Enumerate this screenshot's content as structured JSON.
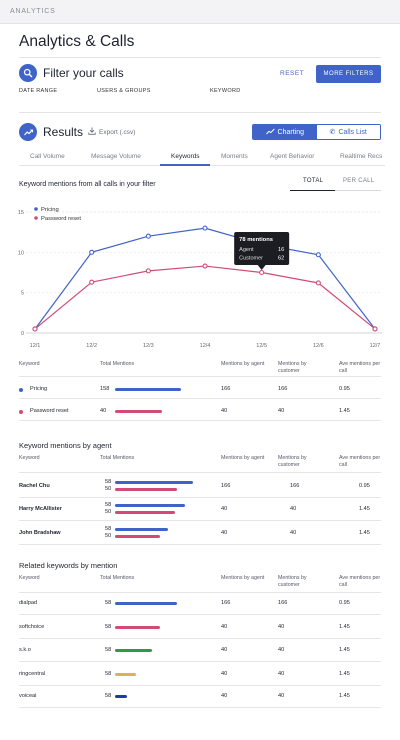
{
  "app": {
    "top_label": "ANALYTICS",
    "title": "Analytics & Calls"
  },
  "filter": {
    "title": "Filter your calls",
    "reset_label": "RESET",
    "more_label": "MORE FILTERS",
    "fields": [
      "DATE RANGE",
      "USERS & GROUPS",
      "KEYWORD"
    ]
  },
  "results": {
    "title": "Results",
    "export_label": "Export (.csv)",
    "view_toggle": [
      {
        "label": "Charting",
        "active": true
      },
      {
        "label": "Calls List",
        "active": false
      }
    ],
    "tabs": [
      "Call Volume",
      "Message Volume",
      "Keywords",
      "Moments",
      "Agent Behavior",
      "Realtime Recs"
    ],
    "active_tab": "Keywords"
  },
  "chart": {
    "title": "Keyword mentions from all calls in your filter",
    "segments": [
      {
        "label": "TOTAL",
        "active": true
      },
      {
        "label": "PER CALL",
        "active": false
      }
    ],
    "tooltip": {
      "title": "78 mentions",
      "rows": [
        {
          "label": "Agent",
          "value": "16"
        },
        {
          "label": "Customer",
          "value": "62"
        }
      ]
    }
  },
  "chart_data": {
    "type": "line",
    "x": [
      "12/1",
      "12/2",
      "12/3",
      "12/4",
      "12/5",
      "12/6",
      "12/7"
    ],
    "series": [
      {
        "name": "Pricing",
        "color": "#3f63c9",
        "values": [
          0.5,
          10,
          12,
          13,
          11,
          9.7,
          0.5
        ]
      },
      {
        "name": "Password reset",
        "color": "#d24b77",
        "values": [
          0.5,
          6.3,
          7.7,
          8.3,
          7.5,
          6.2,
          0.5
        ]
      }
    ],
    "ylim": [
      0,
      15
    ],
    "yticks": [
      0,
      5,
      10,
      15
    ],
    "grid": true,
    "legend": "top-left",
    "highlight_index": 4
  },
  "keyword_table": {
    "headers": [
      "Keyword",
      "Total Mentions",
      "Mentions by agent",
      "Mentions by customer",
      "Ave mentions per call"
    ],
    "rows": [
      {
        "keyword": "Pricing",
        "color": "#3f63c9",
        "total": "158",
        "bar_fraction": 0.75,
        "agent": "166",
        "customer": "166",
        "ave": "0.95"
      },
      {
        "keyword": "Password reset",
        "color": "#d24b77",
        "total": "40",
        "bar_fraction": 0.53,
        "agent": "40",
        "customer": "40",
        "ave": "1.45"
      }
    ]
  },
  "agent_section": {
    "title": "Keyword mentions by agent",
    "headers": [
      "Keyword",
      "Total Mentions",
      "Mentions by agent",
      "Mentions by customer",
      "Ave mentions per call"
    ],
    "rows": [
      {
        "name": "Rachel Chu",
        "totals": [
          "58",
          "50"
        ],
        "fractions": [
          0.95,
          0.75
        ],
        "agent": "166",
        "customer": "166",
        "ave": "0.95"
      },
      {
        "name": "Harry McAllister",
        "totals": [
          "58",
          "50"
        ],
        "fractions": [
          0.85,
          0.73
        ],
        "agent": "40",
        "customer": "40",
        "ave": "1.45"
      },
      {
        "name": "John Bradshaw",
        "totals": [
          "58",
          "50"
        ],
        "fractions": [
          0.65,
          0.55
        ],
        "agent": "40",
        "customer": "40",
        "ave": "1.45"
      }
    ]
  },
  "related_section": {
    "title": "Related keywords by mention",
    "headers": [
      "Keyword",
      "Total Mentions",
      "Mentions by agent",
      "Mentions by customer",
      "Ave mentions per call"
    ],
    "rows": [
      {
        "keyword": "dialpad",
        "total": "58",
        "color": "#3f63c9",
        "fraction": 0.75,
        "agent": "166",
        "customer": "166",
        "ave": "0.95"
      },
      {
        "keyword": "softchoice",
        "total": "58",
        "color": "#d24b77",
        "fraction": 0.55,
        "agent": "40",
        "customer": "40",
        "ave": "1.45"
      },
      {
        "keyword": "s.k.o",
        "total": "58",
        "color": "#2e9a4a",
        "fraction": 0.45,
        "agent": "40",
        "customer": "40",
        "ave": "1.45"
      },
      {
        "keyword": "ringcentral",
        "total": "58",
        "color": "#d9b25a",
        "fraction": 0.25,
        "agent": "40",
        "customer": "40",
        "ave": "1.45"
      },
      {
        "keyword": "voiceai",
        "total": "58",
        "color": "#1f3aa8",
        "fraction": 0.15,
        "agent": "40",
        "customer": "40",
        "ave": "1.45"
      }
    ]
  }
}
